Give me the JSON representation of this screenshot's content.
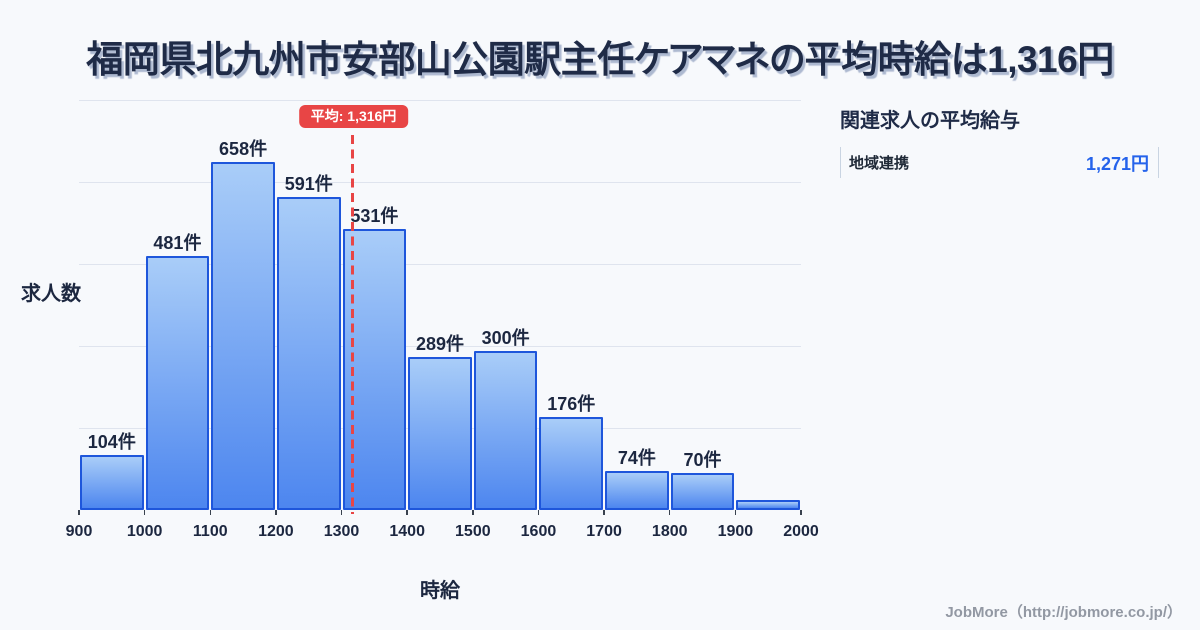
{
  "title": {
    "text": "福岡県北九州市安部山公園駅主任ケアマネの平均時給は1,316円"
  },
  "chart_data": {
    "type": "bar",
    "title": "福岡県北九州市安部山公園駅主任ケアマネの平均時給は1,316円",
    "xlabel": "時給",
    "ylabel": "求人数",
    "bin_edges": [
      900,
      1000,
      1100,
      1200,
      1300,
      1400,
      1500,
      1600,
      1700,
      1800,
      1900,
      2000
    ],
    "categories": [
      "900-1000",
      "1000-1100",
      "1100-1200",
      "1200-1300",
      "1300-1400",
      "1400-1500",
      "1500-1600",
      "1600-1700",
      "1700-1800",
      "1800-1900",
      "1900-2000"
    ],
    "values": [
      104,
      481,
      658,
      591,
      531,
      289,
      300,
      176,
      74,
      70,
      18
    ],
    "bar_labels": [
      "104件",
      "481件",
      "658件",
      "591件",
      "531件",
      "289件",
      "300件",
      "176件",
      "74件",
      "70件",
      ""
    ],
    "x_ticks": [
      "900",
      "1000",
      "1100",
      "1200",
      "1300",
      "1400",
      "1500",
      "1600",
      "1700",
      "1800",
      "1900",
      "2000"
    ],
    "xlim": [
      900,
      2000
    ],
    "ylim": [
      0,
      775
    ],
    "gridline_values": [
      155,
      310,
      465,
      620,
      775
    ],
    "grid": "horizontal",
    "legend": "none",
    "mean": {
      "value": 1316,
      "label": "平均: 1,316円"
    }
  },
  "side_panel": {
    "heading": "関連求人の平均給与",
    "rows": [
      {
        "label": "地域連携",
        "value": "1,271円"
      }
    ]
  },
  "footer": {
    "credit": "JobMore（http://jobmore.co.jp/）"
  },
  "colors": {
    "background": "#f7f9fc",
    "title_navy": "#1f2b47",
    "text_navy": "#1c2740",
    "gridline": "#dfe4ee",
    "bar_border": "#1e56db",
    "bar_gradient_top": "#a9cdf8",
    "bar_gradient_bottom": "#4d86ef",
    "mean_red": "#e84545",
    "value_blue": "#2563eb",
    "row_border": "#c9d4e2",
    "footer_gray": "#9298a3"
  }
}
